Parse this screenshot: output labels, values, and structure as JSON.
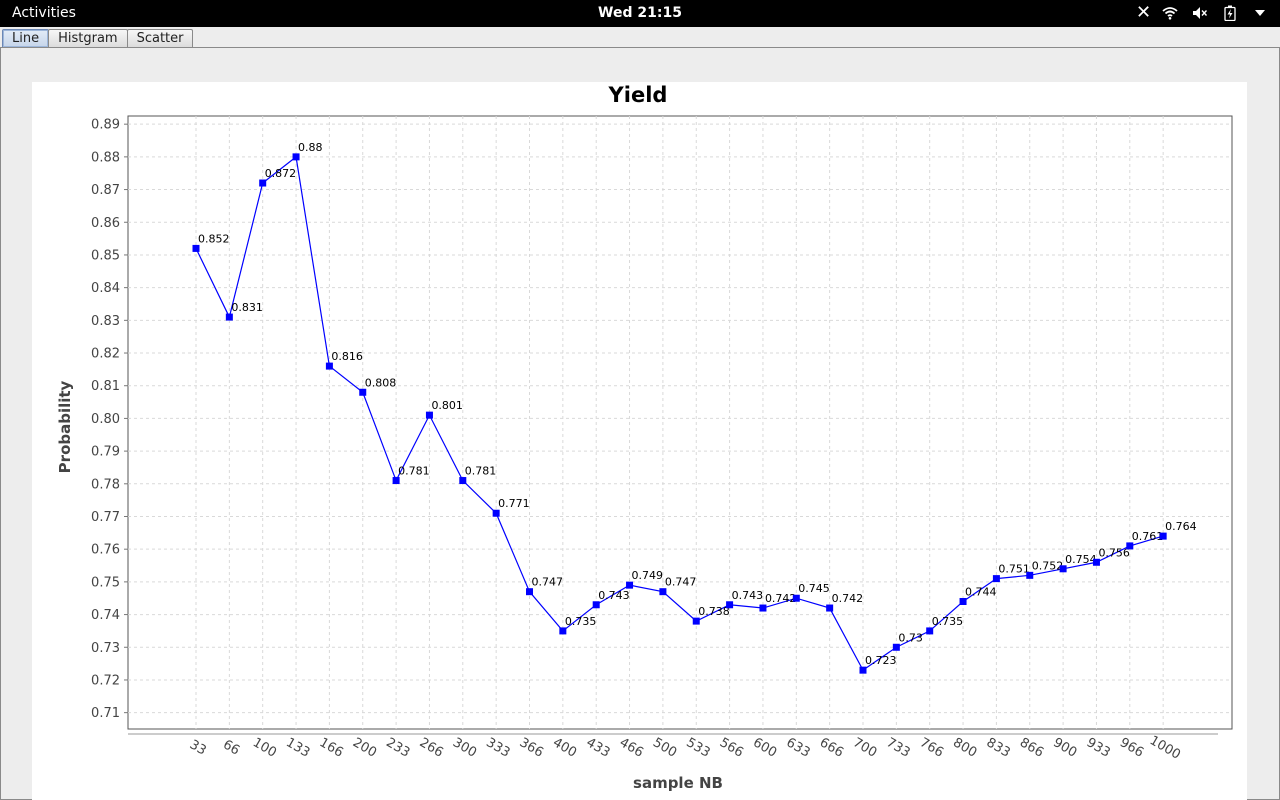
{
  "topbar": {
    "activities": "Activities",
    "clock": "Wed 21:15",
    "icons": [
      "close-icon",
      "wifi-icon",
      "volume-muted-icon",
      "battery-icon",
      "dropdown-arrow-icon"
    ]
  },
  "tabs": [
    {
      "label": "Line",
      "active": true
    },
    {
      "label": "Histgram",
      "active": false
    },
    {
      "label": "Scatter",
      "active": false
    }
  ],
  "colors": {
    "series": "#0000ff",
    "grid": "#d9d9d9",
    "plot_border": "#555555"
  },
  "chart_data": {
    "type": "line",
    "title": "Yield",
    "xlabel": "sample NB",
    "ylabel": "Probability",
    "categories": [
      "33",
      "66",
      "100",
      "133",
      "166",
      "200",
      "233",
      "266",
      "300",
      "333",
      "366",
      "400",
      "433",
      "466",
      "500",
      "533",
      "566",
      "600",
      "633",
      "666",
      "700",
      "733",
      "766",
      "800",
      "833",
      "866",
      "900",
      "933",
      "966",
      "1000"
    ],
    "series": [
      {
        "values": [
          0.852,
          0.831,
          0.872,
          0.88,
          0.816,
          0.808,
          0.781,
          0.801,
          0.781,
          0.771,
          0.747,
          0.735,
          0.743,
          0.749,
          0.747,
          0.738,
          0.743,
          0.742,
          0.745,
          0.742,
          0.723,
          0.73,
          0.735,
          0.744,
          0.751,
          0.752,
          0.754,
          0.756,
          0.761,
          0.764
        ]
      }
    ],
    "ylim": [
      0.705,
      0.8925
    ],
    "yticks": [
      "0.71",
      "0.72",
      "0.73",
      "0.74",
      "0.75",
      "0.76",
      "0.77",
      "0.78",
      "0.79",
      "0.80",
      "0.81",
      "0.82",
      "0.83",
      "0.84",
      "0.85",
      "0.86",
      "0.87",
      "0.88",
      "0.89"
    ],
    "grid": true,
    "legend": "none",
    "data_labels": true
  }
}
